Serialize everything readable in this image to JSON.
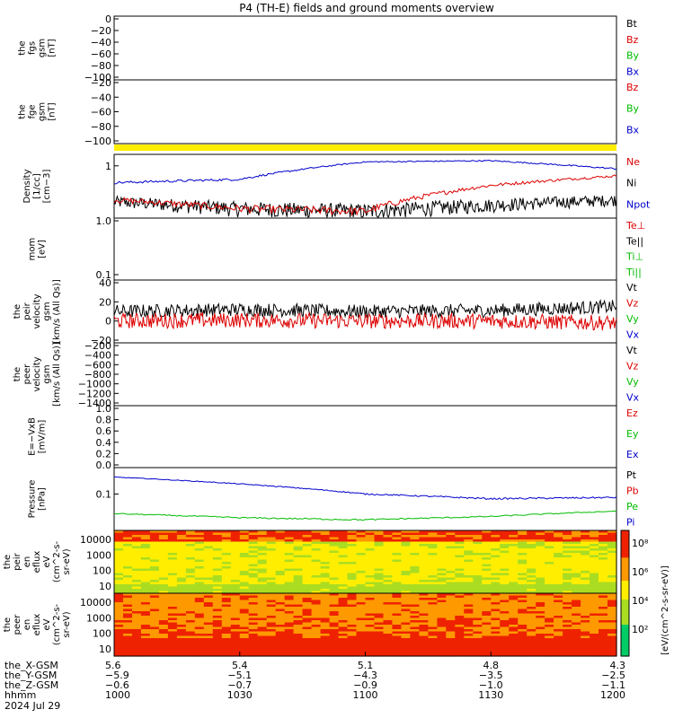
{
  "title": "P4 (TH-E) fields and ground moments overview",
  "colors": {
    "black": "#000000",
    "red": "#dd0000",
    "green": "#00bb00",
    "blue": "#0000cc",
    "yellow": "#ffee00"
  },
  "panels": [
    {
      "id": "fgs",
      "ylabel": [
        "the",
        "fgs",
        "gsm",
        "[nT]"
      ],
      "ticks": [
        "0",
        "−20",
        "−40",
        "−60",
        "−80",
        "−100"
      ],
      "legend": [
        {
          "text": "Bt",
          "color": "black"
        },
        {
          "text": "Bz",
          "color": "red"
        },
        {
          "text": "By",
          "color": "green"
        },
        {
          "text": "Bx",
          "color": "blue"
        }
      ]
    },
    {
      "id": "fge",
      "ylabel": [
        "the",
        "fge",
        "gsm",
        "[nT]"
      ],
      "ticks": [
        "−20",
        "−40",
        "−60",
        "−80",
        "−100"
      ],
      "legend": [
        {
          "text": "Bz",
          "color": "red"
        },
        {
          "text": "By",
          "color": "green"
        },
        {
          "text": "Bx",
          "color": "blue"
        }
      ]
    },
    {
      "id": "density",
      "ylabel": [
        "Density",
        "[1/cc]",
        "[cm−3]"
      ],
      "ticks": [
        "1"
      ],
      "legend": [
        {
          "text": "Ne",
          "color": "red"
        },
        {
          "text": "Ni",
          "color": "black"
        },
        {
          "text": "Npot",
          "color": "blue"
        }
      ]
    },
    {
      "id": "temp",
      "ylabel": [
        "mom",
        "[eV]"
      ],
      "ticks": [
        "1.0",
        "0.1"
      ],
      "legend": [
        {
          "text": "Te⊥",
          "color": "red"
        },
        {
          "text": "Te||",
          "color": "black"
        },
        {
          "text": "Ti⊥",
          "color": "green"
        },
        {
          "text": "Ti||",
          "color": "green"
        }
      ]
    },
    {
      "id": "peir",
      "ylabel": [
        "the",
        "peir",
        "velocity",
        "gsm",
        "[km/s (All Qs)]"
      ],
      "ticks": [
        "40",
        "20",
        "0",
        "−20"
      ],
      "legend": [
        {
          "text": "Vt",
          "color": "black"
        },
        {
          "text": "Vz",
          "color": "red"
        },
        {
          "text": "Vy",
          "color": "green"
        },
        {
          "text": "Vx",
          "color": "blue"
        }
      ]
    },
    {
      "id": "peer",
      "ylabel": [
        "the",
        "peer",
        "velocity",
        "gsm",
        "[km/s (All Qs)]"
      ],
      "ticks": [
        "−200",
        "−400",
        "−600",
        "−800",
        "−1000",
        "−1200",
        "−1400"
      ],
      "legend": [
        {
          "text": "Vt",
          "color": "black"
        },
        {
          "text": "Vz",
          "color": "red"
        },
        {
          "text": "Vy",
          "color": "green"
        },
        {
          "text": "Vx",
          "color": "blue"
        }
      ]
    },
    {
      "id": "efield",
      "ylabel": [
        "E=−VxB",
        "[mV/m]"
      ],
      "ticks": [
        "1.0",
        "0.8",
        "0.6",
        "0.4",
        "0.2",
        "0.0"
      ],
      "legend": [
        {
          "text": "Ez",
          "color": "red"
        },
        {
          "text": "Ey",
          "color": "green"
        },
        {
          "text": "Ex",
          "color": "blue"
        }
      ]
    },
    {
      "id": "pressure",
      "ylabel": [
        "Pressure",
        "[nPa]"
      ],
      "ticks": [
        "0.1"
      ],
      "legend": [
        {
          "text": "Pt",
          "color": "black"
        },
        {
          "text": "Pb",
          "color": "red"
        },
        {
          "text": "Pe",
          "color": "green"
        },
        {
          "text": "Pi",
          "color": "blue"
        }
      ]
    },
    {
      "id": "peirspec",
      "ylabel": [
        "the",
        "peir",
        "en",
        "eflux",
        "eV",
        "(cm^2-s-",
        "sr-eV)"
      ],
      "ticks": [
        "10000",
        "1000",
        "100",
        "10"
      ],
      "legend": []
    },
    {
      "id": "peerspec",
      "ylabel": [
        "the",
        "peer",
        "en",
        "eflux",
        "eV",
        "(cm^2-s-",
        "sr-eV)"
      ],
      "ticks": [
        "10000",
        "1000",
        "100",
        "10"
      ],
      "legend": []
    }
  ],
  "colorbar": {
    "ticks": [
      "10⁸",
      "10⁶",
      "10⁴",
      "10²"
    ],
    "label": "[eV/(cm^2-s-sr-eV)]"
  },
  "footer": {
    "rows": [
      {
        "label": "the_X-GSM",
        "values": [
          "5.6",
          "5.4",
          "5.1",
          "4.8",
          "4.3"
        ]
      },
      {
        "label": "the_Y-GSM",
        "values": [
          "−5.9",
          "−5.1",
          "−4.3",
          "−3.5",
          "−2.5"
        ]
      },
      {
        "label": "the_Z-GSM",
        "values": [
          "−0.6",
          "−0.7",
          "−0.9",
          "−1.0",
          "−1.1"
        ]
      },
      {
        "label": "hhmm",
        "values": [
          "1000",
          "1030",
          "1100",
          "1130",
          "1200"
        ]
      }
    ],
    "date": "2024 Jul 29"
  },
  "chart_data": {
    "type": "line",
    "x": [
      "10:00",
      "10:30",
      "11:00",
      "11:30",
      "12:00"
    ],
    "title": "P4 (TH-E) fields and ground moments overview",
    "series": [
      {
        "panel": "density",
        "name": "Npot",
        "values": [
          0.55,
          0.62,
          1.15,
          1.2,
          0.9
        ]
      },
      {
        "panel": "density",
        "name": "Ne",
        "values": [
          0.3,
          0.22,
          0.2,
          0.5,
          0.7
        ]
      },
      {
        "panel": "density",
        "name": "Ni",
        "values": [
          0.28,
          0.22,
          0.2,
          0.25,
          0.3
        ]
      },
      {
        "panel": "peir",
        "name": "Vt",
        "values": [
          10,
          12,
          10,
          11,
          15
        ]
      },
      {
        "panel": "peir",
        "name": "Vz",
        "values": [
          0,
          1,
          0,
          0,
          -2
        ]
      },
      {
        "panel": "pressure",
        "name": "Pi",
        "values": [
          0.22,
          0.16,
          0.1,
          0.08,
          0.085
        ]
      },
      {
        "panel": "pressure",
        "name": "Pe",
        "values": [
          0.04,
          0.033,
          0.03,
          0.035,
          0.045
        ]
      }
    ]
  }
}
